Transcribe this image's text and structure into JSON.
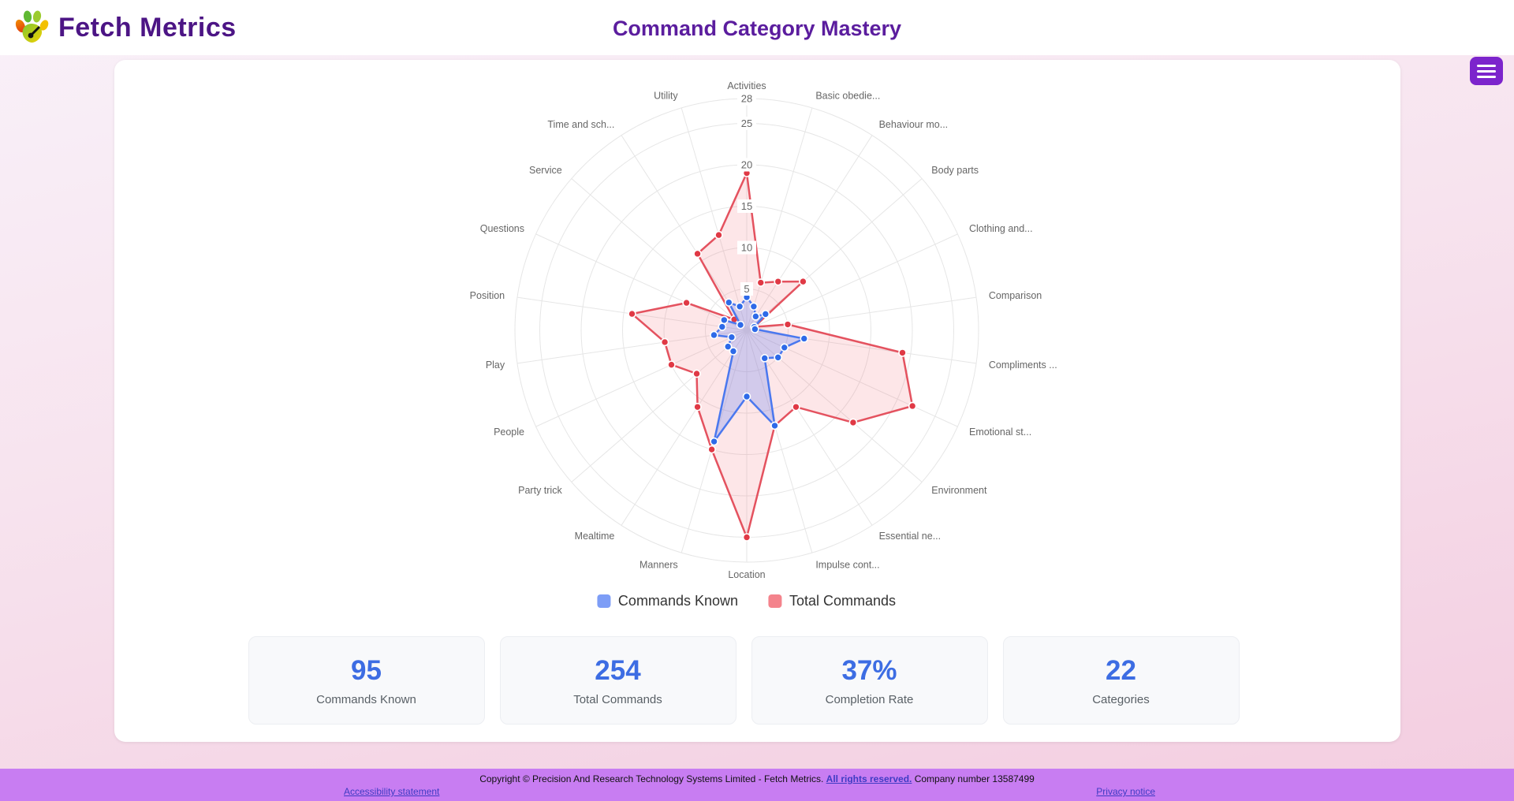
{
  "header": {
    "logo_text": "Fetch Metrics",
    "title": "Command Category Mastery"
  },
  "chart_data": {
    "type": "radar",
    "title": "Command Category Mastery",
    "categories": [
      "Activities",
      "Basic obedie...",
      "Behaviour mo...",
      "Body parts",
      "Clothing and...",
      "Comparison",
      "Compliments ...",
      "Emotional st...",
      "Environment",
      "Essential ne...",
      "Impulse cont...",
      "Location",
      "Manners",
      "Mealtime",
      "Party trick",
      "People",
      "Play",
      "Position",
      "Questions",
      "Service",
      "Time and sch...",
      "Utility"
    ],
    "series": [
      {
        "name": "Commands Known",
        "values": [
          4,
          3,
          2,
          3,
          1,
          1,
          7,
          5,
          5,
          4,
          12,
          8,
          14,
          3,
          3,
          2,
          4,
          3,
          3,
          1,
          4,
          3
        ],
        "line_color": "#4a78ef",
        "point_color": "#2e6ae8",
        "fill_color": "rgba(100,130,245,0.28)",
        "legend_swatch": "#7d9df6"
      },
      {
        "name": "Total Commands",
        "values": [
          19,
          6,
          7,
          9,
          1,
          5,
          19,
          22,
          17,
          11,
          12,
          25,
          15,
          11,
          8,
          10,
          10,
          14,
          8,
          2,
          11,
          12
        ],
        "line_color": "#e4525f",
        "point_color": "#e03945",
        "fill_color": "rgba(240,100,110,0.16)",
        "legend_swatch": "#f4838c"
      }
    ],
    "ticks": [
      5,
      10,
      15,
      20,
      25,
      28
    ],
    "rmax": 28,
    "grid": "circular",
    "legend_position": "bottom"
  },
  "stats": [
    {
      "value": "95",
      "label": "Commands Known"
    },
    {
      "value": "254",
      "label": "Total Commands"
    },
    {
      "value": "37%",
      "label": "Completion Rate"
    },
    {
      "value": "22",
      "label": "Categories"
    }
  ],
  "footer": {
    "copyright_prefix": "Copyright © Precision And Research Technology Systems Limited - Fetch Metrics. ",
    "rights_link": "All rights reserved.",
    "company_suffix": " Company number 13587499",
    "left_link": "Accessibility statement",
    "right_link": "Privacy notice"
  }
}
